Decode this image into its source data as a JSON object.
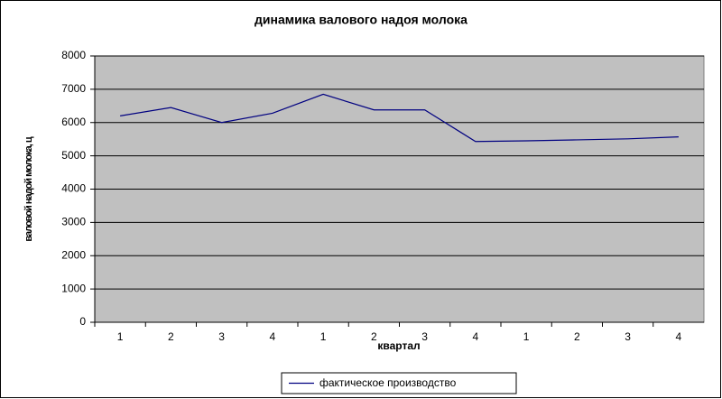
{
  "chart_data": {
    "type": "line",
    "title": "динамика валового надоя молока",
    "x_label": "квартал",
    "y_label": "валовой надой молока, ц",
    "categories": [
      "1",
      "2",
      "3",
      "4",
      "1",
      "2",
      "3",
      "4",
      "1",
      "2",
      "3",
      "4"
    ],
    "series": [
      {
        "name": "фактическое производство",
        "color": "#000080",
        "values": [
          6200,
          6450,
          6000,
          6280,
          6850,
          6380,
          6380,
          5430,
          5450,
          5480,
          5510,
          5570
        ]
      }
    ],
    "ylim": [
      0,
      8000
    ],
    "yticks": [
      0,
      1000,
      2000,
      3000,
      4000,
      5000,
      6000,
      7000,
      8000
    ],
    "grid": true,
    "legend": "bottom"
  }
}
